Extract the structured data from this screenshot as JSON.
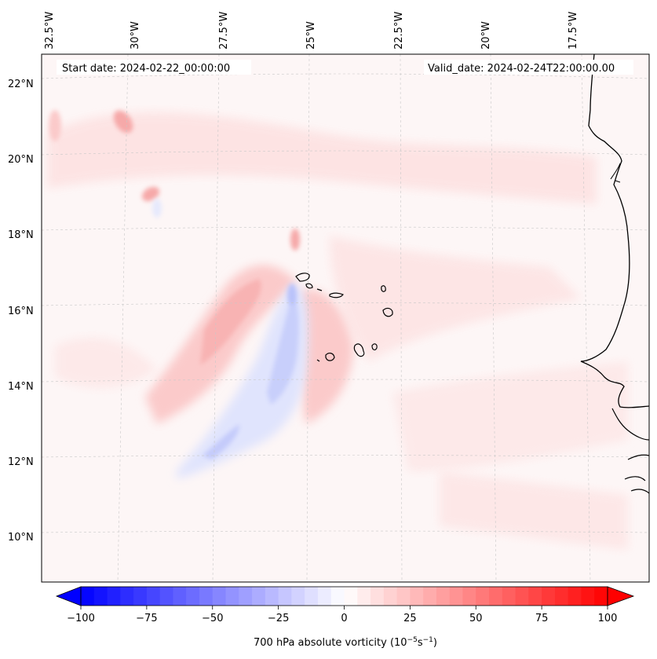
{
  "header": {
    "start_date": "Start date: 2024-02-22_00:00:00",
    "valid_date": "Valid_date: 2024-02-24T22:00:00.00"
  },
  "map": {
    "lon_labels": [
      "32.5°W",
      "30°W",
      "27.5°W",
      "25°W",
      "22.5°W",
      "20°W",
      "17.5°W"
    ],
    "lat_labels": [
      "22°N",
      "20°N",
      "18°N",
      "16°N",
      "14°N",
      "12°N",
      "10°N"
    ],
    "field_name": "700 hPa absolute vorticity",
    "colors": {
      "negative": "#0000ff",
      "positive": "#ff0000",
      "coastline": "#000000",
      "gridline": "#c8c8c8"
    }
  },
  "colorbar": {
    "ticks": [
      "−100",
      "−75",
      "−50",
      "−25",
      "0",
      "25",
      "50",
      "75",
      "100"
    ],
    "values": [
      -100,
      -75,
      -50,
      -25,
      0,
      25,
      50,
      75,
      100
    ],
    "min": -100,
    "max": 100,
    "step": 5,
    "label_text": "700 hPa absolute vorticity (10",
    "label_exp1": "−5",
    "label_mid": "s",
    "label_exp2": "−1",
    "label_close": ")"
  }
}
